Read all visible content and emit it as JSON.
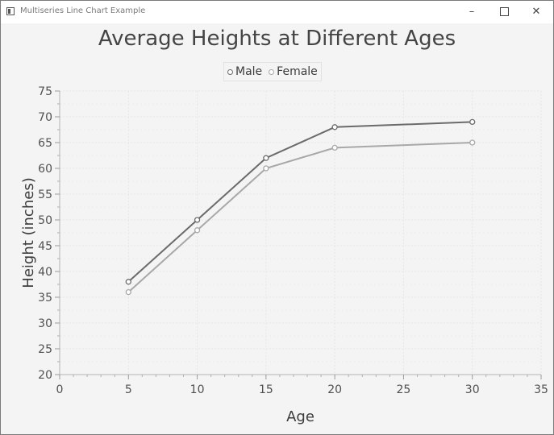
{
  "window": {
    "title": "Multiseries Line Chart Example",
    "minimize_icon": "minimize-icon",
    "maximize_icon": "maximize-icon",
    "close_icon": "close-icon"
  },
  "chart_data": {
    "type": "line",
    "title": "Average Heights at Different Ages",
    "xlabel": "Age",
    "ylabel": "Height (inches)",
    "xlim": [
      0,
      35
    ],
    "ylim": [
      20,
      75
    ],
    "x_ticks": [
      0,
      5,
      10,
      15,
      20,
      25,
      30,
      35
    ],
    "y_ticks": [
      20,
      25,
      30,
      35,
      40,
      45,
      50,
      55,
      60,
      65,
      70,
      75
    ],
    "grid": true,
    "legend_position": "top-center",
    "series": [
      {
        "name": "Male",
        "color": "#6b6b6b",
        "x": [
          5,
          10,
          15,
          20,
          30
        ],
        "y": [
          38,
          50,
          62,
          68,
          69
        ]
      },
      {
        "name": "Female",
        "color": "#a8a8a8",
        "x": [
          5,
          10,
          15,
          20,
          30
        ],
        "y": [
          36,
          48,
          60,
          64,
          65
        ]
      }
    ]
  }
}
